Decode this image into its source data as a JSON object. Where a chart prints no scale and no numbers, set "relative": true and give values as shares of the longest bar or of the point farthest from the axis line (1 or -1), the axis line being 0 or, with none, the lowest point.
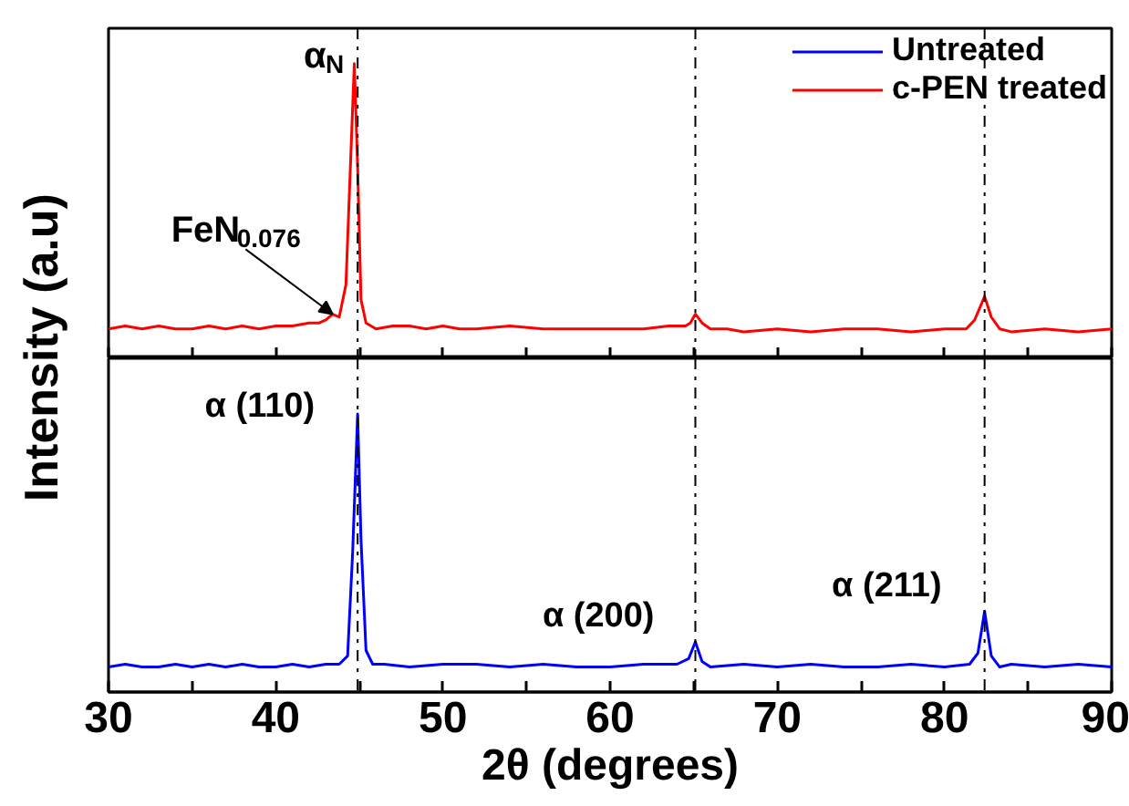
{
  "chart_data": [
    {
      "type": "line",
      "relative": true,
      "xlim": [
        30,
        90
      ],
      "xticks": [
        30,
        {
          "value": 35,
          "label": null
        },
        40,
        {
          "value": 45,
          "label": null
        },
        50,
        {
          "value": 55,
          "label": null
        },
        60,
        {
          "value": 65,
          "label": null
        },
        70,
        {
          "value": 75,
          "label": null
        },
        80,
        {
          "value": 85,
          "label": null
        },
        90
      ],
      "tick_labels": false,
      "legend": "top right",
      "grid": false,
      "x": [
        30,
        31,
        32,
        33,
        34,
        35,
        36,
        37,
        38,
        39,
        40,
        41,
        42,
        42.6,
        43.0,
        43.4,
        43.8,
        44.2,
        44.5,
        44.7,
        44.9,
        45.1,
        45.4,
        46,
        47,
        48,
        49,
        50,
        51,
        52,
        54,
        56,
        58,
        60,
        62,
        63.5,
        64.5,
        64.8,
        65.1,
        65.5,
        66,
        67,
        68,
        70,
        72,
        74,
        76,
        78,
        80,
        81.3,
        81.8,
        82.1,
        82.4,
        82.8,
        83.3,
        84,
        86,
        88,
        90
      ],
      "series": [
        {
          "name": "c-PEN treated",
          "color": "#ff0000",
          "values": [
            0.1,
            0.11,
            0.1,
            0.11,
            0.1,
            0.1,
            0.11,
            0.1,
            0.11,
            0.1,
            0.11,
            0.11,
            0.12,
            0.12,
            0.13,
            0.15,
            0.14,
            0.25,
            0.7,
            1.0,
            0.65,
            0.2,
            0.12,
            0.1,
            0.11,
            0.11,
            0.1,
            0.11,
            0.1,
            0.1,
            0.11,
            0.1,
            0.1,
            0.1,
            0.1,
            0.11,
            0.11,
            0.12,
            0.15,
            0.12,
            0.1,
            0.1,
            0.09,
            0.1,
            0.09,
            0.1,
            0.1,
            0.09,
            0.1,
            0.1,
            0.13,
            0.17,
            0.21,
            0.14,
            0.1,
            0.09,
            0.1,
            0.09,
            0.1
          ]
        }
      ],
      "annotations": [
        {
          "text": "α$_{N}$",
          "x": 44.7,
          "y": 1.0
        },
        {
          "text": "FeN$_{0.076}$",
          "x": 43.4,
          "y": 0.15
        }
      ],
      "ref_lines": [
        {
          "axis": "x",
          "value": 44.9,
          "line_style": "dashdot"
        },
        {
          "axis": "x",
          "value": 65.1,
          "line_style": "dashdot"
        },
        {
          "axis": "x",
          "value": 82.4,
          "line_style": "dashdot"
        }
      ]
    },
    {
      "type": "line",
      "relative": true,
      "xlim": [
        30,
        90
      ],
      "xticks": [
        30,
        {
          "value": 35,
          "label": null
        },
        40,
        {
          "value": 45,
          "label": null
        },
        50,
        {
          "value": 55,
          "label": null
        },
        60,
        {
          "value": 65,
          "label": null
        },
        70,
        {
          "value": 75,
          "label": null
        },
        80,
        {
          "value": 85,
          "label": null
        },
        90
      ],
      "tick_labels": "x",
      "grid": false,
      "xlabel": "2θ (degrees)",
      "ylabel": "Intensity (a.u)",
      "x": [
        30,
        31,
        32,
        33,
        34,
        35,
        36,
        37,
        38,
        39,
        40,
        41,
        42,
        43,
        43.8,
        44.3,
        44.6,
        44.9,
        45.1,
        45.4,
        45.8,
        46.5,
        48,
        50,
        52,
        54,
        56,
        58,
        60,
        62,
        64,
        64.7,
        65.1,
        65.5,
        66,
        68,
        70,
        72,
        74,
        76,
        78,
        80,
        81.5,
        82.0,
        82.4,
        82.8,
        83.3,
        84,
        86,
        88,
        90
      ],
      "series": [
        {
          "name": "Untreated",
          "color": "#0000ff",
          "values": [
            0.09,
            0.1,
            0.09,
            0.09,
            0.1,
            0.09,
            0.1,
            0.09,
            0.1,
            0.09,
            0.09,
            0.1,
            0.09,
            0.1,
            0.1,
            0.13,
            0.5,
            1.0,
            0.55,
            0.15,
            0.1,
            0.1,
            0.09,
            0.1,
            0.1,
            0.09,
            0.1,
            0.09,
            0.09,
            0.1,
            0.1,
            0.12,
            0.18,
            0.11,
            0.09,
            0.1,
            0.09,
            0.1,
            0.09,
            0.09,
            0.1,
            0.09,
            0.1,
            0.14,
            0.29,
            0.13,
            0.09,
            0.1,
            0.09,
            0.1,
            0.09
          ]
        }
      ],
      "annotations": [
        {
          "text": "α (110)",
          "x": 44.9,
          "y": 1.0
        },
        {
          "text": "α (200)",
          "x": 65.1,
          "y": 0.18
        },
        {
          "text": "α (211)",
          "x": 82.4,
          "y": 0.29
        }
      ],
      "ref_lines": [
        {
          "axis": "x",
          "value": 44.9,
          "line_style": "dashdot"
        },
        {
          "axis": "x",
          "value": 65.1,
          "line_style": "dashdot"
        },
        {
          "axis": "x",
          "value": 82.4,
          "line_style": "dashdot"
        }
      ]
    }
  ]
}
